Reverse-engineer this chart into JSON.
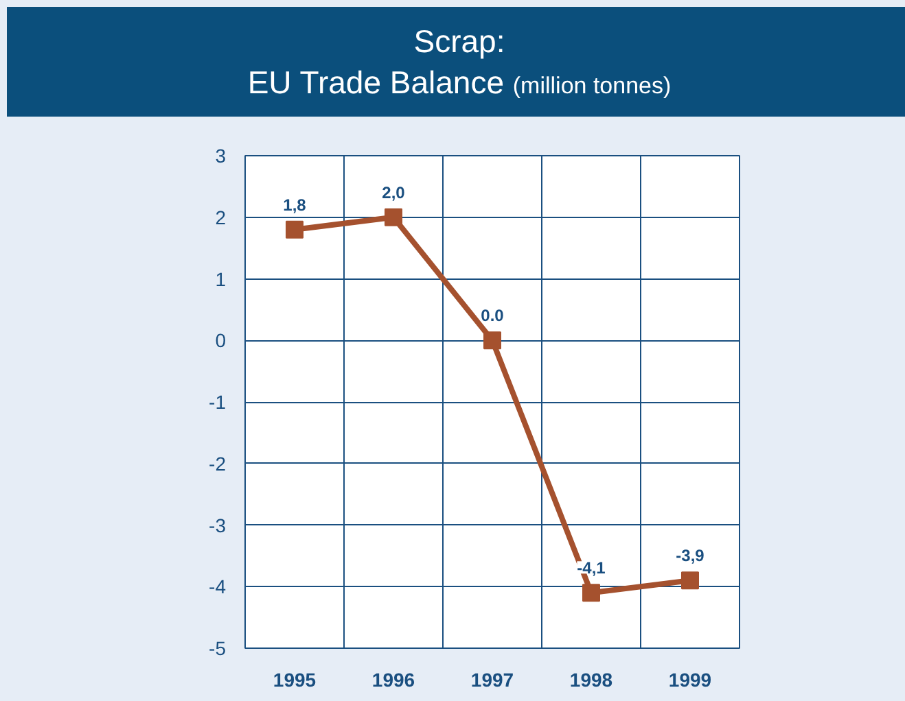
{
  "chart_data": {
    "type": "line",
    "title": "Scrap:\nEU Trade Balance",
    "subtitle": "(million tonnes)",
    "categories": [
      "1995",
      "1996",
      "1997",
      "1998",
      "1999"
    ],
    "series": [
      {
        "color": "#a5512e",
        "values": [
          1.8,
          2.0,
          0.0,
          -4.1,
          -3.9
        ],
        "value_labels": [
          "1,8",
          "2,0",
          "0.0",
          "-4,1",
          "-3,9"
        ]
      }
    ],
    "ylim": [
      -5,
      3
    ],
    "yticks": [
      -5,
      -4,
      -3,
      -2,
      -1,
      0,
      1,
      2,
      3
    ],
    "grid": true,
    "marker": "square",
    "line_style": "solid"
  }
}
